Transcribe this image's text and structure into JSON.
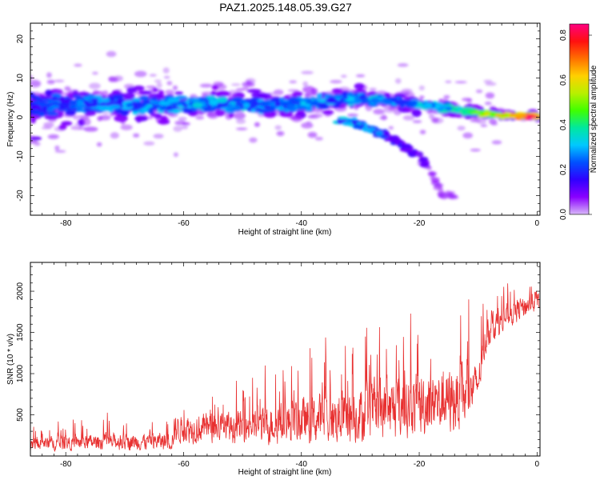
{
  "title": "PAZ1.2025.148.05.39.G27",
  "chart_data": [
    {
      "type": "heatmap",
      "xlabel": "Height of straight line (km)",
      "ylabel": "Frequency (Hz)",
      "xlim": [
        -86,
        0.5
      ],
      "ylim": [
        -25,
        24
      ],
      "xticks": [
        -80,
        -60,
        -40,
        -20,
        0
      ],
      "yticks": [
        -20,
        -10,
        0,
        10,
        20
      ],
      "colorbar": {
        "label": "Normalized spectral amplitude",
        "range": [
          0,
          0.85
        ],
        "ticks": [
          "0.0",
          "0.2",
          "0.4",
          "0.6",
          "0.8"
        ],
        "colormap": [
          "#d8b8f8",
          "#8a00ff",
          "#3000ff",
          "#0050ff",
          "#00c8ff",
          "#00e8a0",
          "#40ff00",
          "#b8f000",
          "#ffd000",
          "#ff7000",
          "#ff1010",
          "#ff0080"
        ]
      },
      "ridge": [
        {
          "x": -84,
          "y": 3.5,
          "spread": 10,
          "amp": 0.22
        },
        {
          "x": -78,
          "y": 3.5,
          "spread": 8,
          "amp": 0.25
        },
        {
          "x": -72,
          "y": 3.0,
          "spread": 7,
          "amp": 0.27
        },
        {
          "x": -66,
          "y": 3.0,
          "spread": 6.5,
          "amp": 0.29
        },
        {
          "x": -60,
          "y": 3.0,
          "spread": 6,
          "amp": 0.3
        },
        {
          "x": -54,
          "y": 3.5,
          "spread": 6,
          "amp": 0.3
        },
        {
          "x": -48,
          "y": 3.0,
          "spread": 6,
          "amp": 0.3
        },
        {
          "x": -42,
          "y": 3.0,
          "spread": 5.5,
          "amp": 0.3
        },
        {
          "x": -36,
          "y": 4.0,
          "spread": 5,
          "amp": 0.3
        },
        {
          "x": -30,
          "y": 5.0,
          "spread": 4,
          "amp": 0.3
        },
        {
          "x": -24,
          "y": 4.0,
          "spread": 3,
          "amp": 0.3
        },
        {
          "x": -18,
          "y": 3.0,
          "spread": 2.5,
          "amp": 0.32
        },
        {
          "x": -12,
          "y": 1.5,
          "spread": 2,
          "amp": 0.4
        },
        {
          "x": -6,
          "y": 0.5,
          "spread": 1.5,
          "amp": 0.6
        },
        {
          "x": -1,
          "y": 0.2,
          "spread": 1.2,
          "amp": 0.8
        }
      ],
      "branch": [
        {
          "x": -32,
          "y": -1,
          "amp": 0.28
        },
        {
          "x": -28,
          "y": -3,
          "amp": 0.28
        },
        {
          "x": -24,
          "y": -6,
          "amp": 0.15
        },
        {
          "x": -20,
          "y": -10,
          "amp": 0.12
        },
        {
          "x": -18,
          "y": -14,
          "amp": 0.08
        },
        {
          "x": -16,
          "y": -20,
          "amp": 0.06
        }
      ]
    },
    {
      "type": "line",
      "xlabel": "Height of straight line (km)",
      "ylabel": "SNR (10 * v/v)",
      "xlim": [
        -86,
        0.5
      ],
      "ylim": [
        0,
        2350
      ],
      "xticks": [
        -80,
        -60,
        -40,
        -20,
        0
      ],
      "yticks": [
        500,
        1000,
        1500,
        2000
      ],
      "line_color": "#e83030",
      "envelope": [
        {
          "x": -86,
          "base": 150,
          "amp": 180
        },
        {
          "x": -72,
          "base": 170,
          "amp": 230
        },
        {
          "x": -62,
          "base": 180,
          "amp": 260
        },
        {
          "x": -61.5,
          "base": 330,
          "amp": 400
        },
        {
          "x": -50,
          "base": 350,
          "amp": 450
        },
        {
          "x": -40,
          "base": 420,
          "amp": 650
        },
        {
          "x": -30,
          "base": 500,
          "amp": 800
        },
        {
          "x": -20,
          "base": 620,
          "amp": 900
        },
        {
          "x": -12,
          "base": 700,
          "amp": 900
        },
        {
          "x": -10,
          "base": 900,
          "amp": 500
        },
        {
          "x": -8.5,
          "base": 1500,
          "amp": 450
        },
        {
          "x": -5,
          "base": 1700,
          "amp": 350
        },
        {
          "x": 0,
          "base": 1900,
          "amp": 300
        }
      ]
    }
  ]
}
